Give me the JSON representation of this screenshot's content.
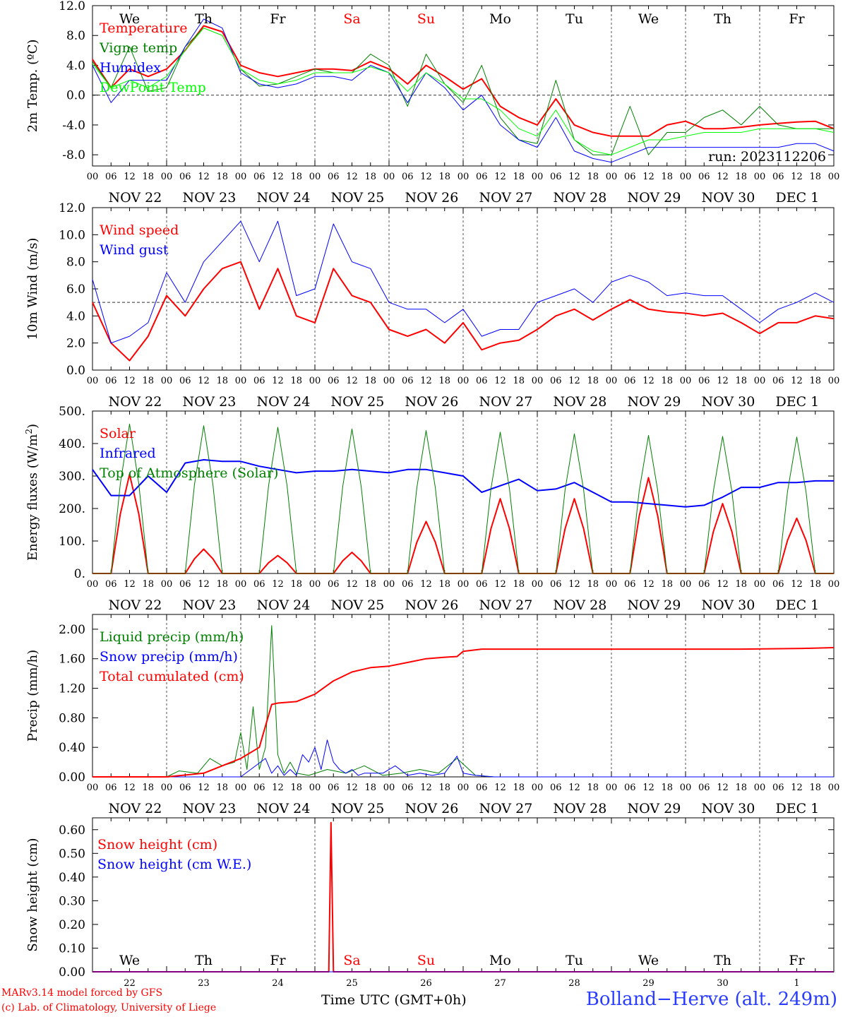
{
  "chart_data": [
    {
      "type": "line",
      "ylabel": "2m Temp. (ºC)",
      "ylim": [
        -9.5,
        12.0
      ],
      "yticks": [
        "12.0",
        "8.0",
        "4.0",
        "0.0",
        "-4.0",
        "-8.0"
      ],
      "yticks_values": [
        12,
        8,
        4,
        0,
        -4,
        -8
      ],
      "reference_line": 0,
      "day_names": [
        {
          "label": "We",
          "color": "#000000"
        },
        {
          "label": "Th",
          "color": "#000000"
        },
        {
          "label": "Fr",
          "color": "#000000"
        },
        {
          "label": "Sa",
          "color": "#ff0000"
        },
        {
          "label": "Su",
          "color": "#ff0000"
        },
        {
          "label": "Mo",
          "color": "#000000"
        },
        {
          "label": "Tu",
          "color": "#000000"
        },
        {
          "label": "We",
          "color": "#000000"
        },
        {
          "label": "Th",
          "color": "#000000"
        },
        {
          "label": "Fr",
          "color": "#000000"
        }
      ],
      "annotation": "run: 2023112206",
      "x_hours": [
        0,
        6,
        12,
        18,
        24,
        30,
        36,
        42,
        48,
        54,
        60,
        66,
        72,
        78,
        84,
        90,
        96,
        102,
        108,
        114,
        120,
        126,
        132,
        138,
        144,
        150,
        156,
        162,
        168,
        174,
        180,
        186,
        192,
        198,
        204,
        210,
        216,
        222,
        228,
        234,
        240
      ],
      "series": [
        {
          "name": "Temperature",
          "color": "#ff0000",
          "width": 2,
          "values": [
            4.8,
            1.0,
            3.5,
            2.5,
            3.5,
            6.0,
            9.3,
            8.5,
            4.0,
            3.0,
            2.5,
            3.0,
            3.5,
            3.5,
            3.3,
            4.5,
            3.5,
            1.5,
            4.0,
            2.5,
            0.8,
            2.2,
            -1.5,
            -3.0,
            -4.0,
            -0.5,
            -4.0,
            -5.0,
            -5.5,
            -5.5,
            -5.5,
            -4.0,
            -3.5,
            -4.5,
            -4.5,
            -4.3,
            -4.0,
            -3.8,
            -3.6,
            -3.5,
            -4.5
          ]
        },
        {
          "name": "Vigne temp",
          "color": "#008000",
          "width": 1,
          "values": [
            4.5,
            1.0,
            6.5,
            0.5,
            1.0,
            6.5,
            9.0,
            8.0,
            3.5,
            1.2,
            1.5,
            2.5,
            3.5,
            3.0,
            3.0,
            5.5,
            4.0,
            -1.5,
            5.5,
            1.5,
            -1.0,
            4.0,
            -3.0,
            -6.0,
            -6.5,
            2.0,
            -6.0,
            -8.0,
            -8.0,
            -1.5,
            -8.0,
            -5.0,
            -5.0,
            -3.0,
            -2.0,
            -4.0,
            -1.5,
            -4.0,
            -4.5,
            -4.5,
            -4.5
          ]
        },
        {
          "name": "Humidex",
          "color": "#0000ff",
          "width": 1,
          "values": [
            4.0,
            -1.0,
            2.0,
            2.0,
            2.0,
            6.5,
            10.2,
            9.0,
            3.0,
            1.5,
            1.0,
            1.5,
            2.5,
            2.5,
            2.0,
            4.0,
            3.0,
            -1.0,
            3.0,
            1.0,
            -2.0,
            0.0,
            -4.0,
            -6.0,
            -7.0,
            -3.0,
            -7.5,
            -8.5,
            -9.0,
            -8.0,
            -7.0,
            -7.0,
            -7.0,
            -7.0,
            -7.0,
            -7.0,
            -7.0,
            -7.0,
            -6.5,
            -6.5,
            -7.5
          ]
        },
        {
          "name": "DewPoint Temp",
          "color": "#00ff00",
          "width": 1,
          "values": [
            4.2,
            1.0,
            2.0,
            1.0,
            2.5,
            6.0,
            9.0,
            8.0,
            3.5,
            2.0,
            1.5,
            2.0,
            3.0,
            3.0,
            3.0,
            3.8,
            3.0,
            0.5,
            3.0,
            1.5,
            -0.5,
            -0.5,
            -2.0,
            -4.5,
            -5.5,
            -2.0,
            -6.0,
            -7.5,
            -8.0,
            -7.0,
            -6.0,
            -6.0,
            -5.5,
            -5.0,
            -5.0,
            -5.0,
            -4.5,
            -4.5,
            -4.5,
            -4.5,
            -5.0
          ]
        }
      ]
    },
    {
      "type": "line",
      "ylabel": "10m Wind (m/s)",
      "ylim": [
        0,
        12.0
      ],
      "yticks": [
        "12.0",
        "10.0",
        "8.0",
        "6.0",
        "4.0",
        "2.0",
        "0.0"
      ],
      "yticks_values": [
        12,
        10,
        8,
        6,
        4,
        2,
        0
      ],
      "reference_line": 5,
      "x_hours": [
        0,
        6,
        12,
        18,
        24,
        30,
        36,
        42,
        48,
        54,
        60,
        66,
        72,
        78,
        84,
        90,
        96,
        102,
        108,
        114,
        120,
        126,
        132,
        138,
        144,
        150,
        156,
        162,
        168,
        174,
        180,
        186,
        192,
        198,
        204,
        210,
        216,
        222,
        228,
        234,
        240
      ],
      "series": [
        {
          "name": "Wind speed",
          "color": "#ff0000",
          "width": 2,
          "values": [
            5.0,
            2.0,
            0.7,
            2.5,
            5.5,
            4.0,
            6.0,
            7.5,
            8.0,
            4.5,
            7.5,
            4.0,
            3.5,
            7.5,
            5.5,
            5.0,
            3.0,
            2.5,
            3.0,
            2.0,
            3.5,
            1.5,
            2.0,
            2.2,
            3.0,
            4.0,
            4.5,
            3.7,
            4.5,
            5.2,
            4.5,
            4.3,
            4.2,
            4.0,
            4.2,
            3.5,
            2.7,
            3.5,
            3.5,
            4.0,
            3.8
          ]
        },
        {
          "name": "Wind gust",
          "color": "#0000ff",
          "width": 1,
          "values": [
            6.7,
            2.0,
            2.5,
            3.5,
            7.2,
            5.0,
            8.0,
            9.5,
            11.0,
            8.0,
            11.0,
            5.5,
            6.0,
            10.8,
            8.0,
            7.5,
            5.0,
            4.5,
            4.5,
            3.5,
            4.5,
            2.5,
            3.0,
            3.0,
            5.0,
            5.5,
            6.0,
            5.0,
            6.5,
            7.0,
            6.5,
            5.5,
            5.7,
            5.5,
            5.5,
            4.5,
            3.5,
            4.5,
            5.0,
            5.7,
            5.0
          ]
        }
      ]
    },
    {
      "type": "line",
      "ylabel": "Energy fluxes (W/m²)",
      "ylabel_main": "Energy fluxes (W/m",
      "ylabel_sup": "2",
      "ylabel_end": ")",
      "ylim": [
        0,
        500
      ],
      "yticks": [
        "500.",
        "400.",
        "300.",
        "200.",
        "100.",
        "0."
      ],
      "yticks_values": [
        500,
        400,
        300,
        200,
        100,
        0
      ],
      "series": [
        {
          "name": "Solar",
          "color": "#ff0000",
          "width": 2,
          "peaks": [
            {
              "hour": 12,
              "value": 305
            },
            {
              "hour": 36,
              "value": 75
            },
            {
              "hour": 60,
              "value": 55
            },
            {
              "hour": 84,
              "value": 65
            },
            {
              "hour": 108,
              "value": 160
            },
            {
              "hour": 132,
              "value": 230
            },
            {
              "hour": 156,
              "value": 230
            },
            {
              "hour": 180,
              "value": 295
            },
            {
              "hour": 204,
              "value": 215
            },
            {
              "hour": 228,
              "value": 170
            }
          ]
        },
        {
          "name": "Infrared",
          "color": "#0000ff",
          "width": 2,
          "x_hours": [
            0,
            6,
            12,
            18,
            24,
            30,
            36,
            42,
            48,
            54,
            60,
            66,
            72,
            78,
            84,
            90,
            96,
            102,
            108,
            114,
            120,
            126,
            132,
            138,
            144,
            150,
            156,
            162,
            168,
            174,
            180,
            186,
            192,
            198,
            204,
            210,
            216,
            222,
            228,
            234,
            240
          ],
          "values": [
            320,
            240,
            240,
            300,
            250,
            340,
            350,
            345,
            345,
            330,
            320,
            310,
            315,
            315,
            320,
            315,
            310,
            320,
            320,
            310,
            300,
            250,
            270,
            290,
            255,
            260,
            280,
            250,
            220,
            220,
            215,
            210,
            205,
            210,
            235,
            265,
            265,
            280,
            280,
            285,
            285
          ]
        },
        {
          "name": "Top of Atmosphere (Solar)",
          "color": "#008000",
          "width": 1,
          "peaks": [
            {
              "hour": 12,
              "value": 460
            },
            {
              "hour": 36,
              "value": 455
            },
            {
              "hour": 60,
              "value": 450
            },
            {
              "hour": 84,
              "value": 445
            },
            {
              "hour": 108,
              "value": 440
            },
            {
              "hour": 132,
              "value": 435
            },
            {
              "hour": 156,
              "value": 430
            },
            {
              "hour": 180,
              "value": 425
            },
            {
              "hour": 204,
              "value": 422
            },
            {
              "hour": 228,
              "value": 420
            }
          ]
        }
      ]
    },
    {
      "type": "line",
      "ylabel": "Precip (mm/h)",
      "ylim": [
        0,
        2.2
      ],
      "yticks": [
        "2.00",
        "1.60",
        "1.20",
        "0.80",
        "0.40",
        "0.00"
      ],
      "yticks_values": [
        2.0,
        1.6,
        1.2,
        0.8,
        0.4,
        0.0
      ],
      "series": [
        {
          "name": "Liquid precip (mm/h)",
          "color": "#008000",
          "width": 1,
          "x_hours": [
            0,
            18,
            24,
            28,
            34,
            38,
            42,
            46,
            48,
            50,
            52,
            54,
            56,
            58,
            60,
            62,
            64,
            66,
            70,
            76,
            82,
            88,
            94,
            100,
            106,
            112,
            118,
            124,
            130,
            240
          ],
          "values": [
            0,
            0,
            0,
            0.08,
            0.05,
            0.25,
            0.15,
            0.2,
            0.6,
            0.1,
            0.95,
            0.1,
            0.4,
            2.05,
            0.3,
            0.05,
            0.2,
            0.05,
            0.02,
            0.1,
            0.05,
            0.15,
            0.02,
            0.05,
            0.1,
            0.05,
            0.25,
            0.02,
            0,
            0
          ]
        },
        {
          "name": "Snow precip (mm/h)",
          "color": "#0000ff",
          "width": 1,
          "x_hours": [
            0,
            48,
            56,
            58,
            60,
            62,
            64,
            66,
            68,
            70,
            72,
            74,
            76,
            78,
            80,
            82,
            84,
            86,
            88,
            90,
            94,
            98,
            102,
            106,
            110,
            114,
            118,
            120,
            124,
            130,
            240
          ],
          "values": [
            0,
            0,
            0.25,
            0.05,
            0.15,
            0.02,
            0.1,
            0.02,
            0.3,
            0.2,
            0.4,
            0.1,
            0.5,
            0.2,
            0.1,
            0.05,
            0.1,
            0.02,
            0.05,
            0.05,
            0.05,
            0.15,
            0.02,
            0.05,
            0.02,
            0.05,
            0.28,
            0.05,
            0.02,
            0,
            0
          ]
        },
        {
          "name": "Total cumulated (cm)",
          "color": "#ff0000",
          "width": 2,
          "x_hours": [
            0,
            24,
            36,
            42,
            48,
            54,
            58,
            60,
            66,
            72,
            78,
            84,
            90,
            96,
            102,
            108,
            114,
            118,
            120,
            126,
            132,
            150,
            180,
            210,
            230,
            240
          ],
          "values": [
            0,
            0,
            0.05,
            0.15,
            0.25,
            0.4,
            0.98,
            1.0,
            1.02,
            1.12,
            1.3,
            1.42,
            1.48,
            1.5,
            1.55,
            1.6,
            1.62,
            1.63,
            1.7,
            1.73,
            1.73,
            1.73,
            1.73,
            1.73,
            1.74,
            1.75
          ]
        }
      ]
    },
    {
      "type": "line",
      "ylabel": "Snow height (cm)",
      "ylim": [
        0,
        0.65
      ],
      "yticks": [
        "0.60",
        "0.50",
        "0.40",
        "0.30",
        "0.20",
        "0.10",
        "0.00"
      ],
      "yticks_values": [
        0.6,
        0.5,
        0.4,
        0.3,
        0.2,
        0.1,
        0.0
      ],
      "day_numbers": [
        "22",
        "23",
        "24",
        "25",
        "26",
        "27",
        "28",
        "29",
        "30",
        "1"
      ],
      "series": [
        {
          "name": "Snow height (cm)",
          "color": "#ff0000",
          "width": 2,
          "x_hours": [
            0,
            76.5,
            77.2,
            78,
            240
          ],
          "values": [
            0,
            0,
            0.63,
            0,
            0
          ]
        },
        {
          "name": "Snow height (cm W.E.)",
          "color": "#0000ff",
          "width": 1,
          "x_hours": [
            0,
            240
          ],
          "values": [
            0,
            0
          ]
        }
      ]
    }
  ],
  "x_axis": {
    "hour_ticks": [
      "00",
      "06",
      "12",
      "18"
    ],
    "final_tick": "00",
    "dates": [
      "NOV 22",
      "NOV 23",
      "NOV 24",
      "NOV 25",
      "NOV 26",
      "NOV 27",
      "NOV 28",
      "NOV 29",
      "NOV 30",
      "DEC  1"
    ],
    "title": "Time UTC (GMT+0h)"
  },
  "footer": {
    "credit_line1": "MARv3.14 model forced by GFS",
    "credit_line2": "(c) Lab. of Climatology, University of Liege",
    "station": "Bolland−Herve (alt. 249m)"
  }
}
